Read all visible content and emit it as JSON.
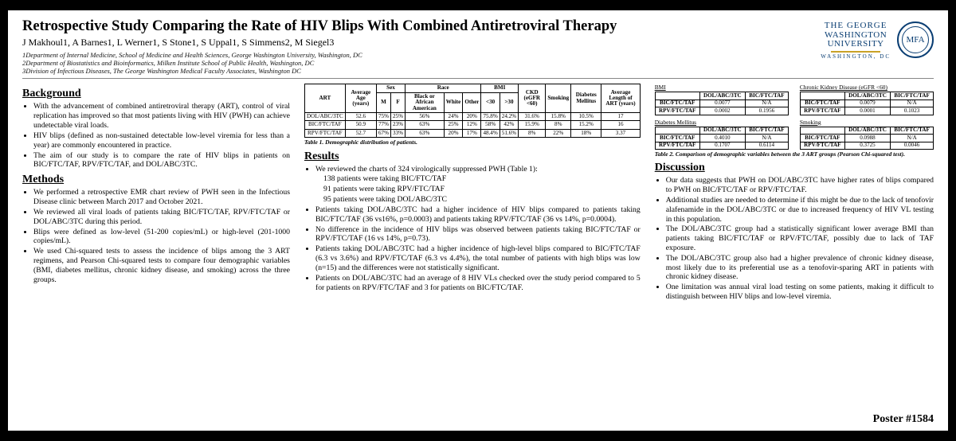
{
  "title": "Retrospective Study Comparing the Rate of HIV Blips With Combined Antiretroviral Therapy",
  "authors": "J Makhoul1, A Barnes1, L Werner1, S Stone1, S Uppal1, S Simmens2, M Siegel3",
  "affiliations": [
    "1Department of Internal Medicine, School of Medicine and Health Sciences, George Washington University, Washington, DC",
    "2Department of Biostatistics and Bioinformatics, Milken Institute School of Public Health, Washington, DC",
    "3Division of Infectious Diseases, The George Washington Medical Faculty Associates, Washington DC"
  ],
  "logo": {
    "l1": "THE GEORGE",
    "l2": "WASHINGTON",
    "l3": "UNIVERSITY",
    "l4": "WASHINGTON, DC",
    "mfa": "MFA"
  },
  "sections": {
    "background_h": "Background",
    "background": [
      "With the advancement of combined antiretroviral therapy (ART), control of viral replication has improved so that most patients living with HIV (PWH) can achieve undetectable viral loads.",
      "HIV blips (defined as non-sustained detectable low-level viremia for less than a year) are commonly encountered in practice.",
      "The aim of our study is to compare the rate of HIV blips in patients on BIC/FTC/TAF, RPV/FTC/TAF, and DOL/ABC/3TC."
    ],
    "methods_h": "Methods",
    "methods": [
      "We performed a retrospective EMR chart review of PWH seen in the Infectious Disease clinic between March 2017 and October 2021.",
      "We reviewed all viral loads of patients taking BIC/FTC/TAF, RPV/FTC/TAF or DOL/ABC/3TC during this period.",
      "Blips were defined as low-level (51-200 copies/mL) or high-level (201-1000 copies/mL).",
      "We used Chi-squared tests to assess the incidence of blips among the 3 ART regimens, and Pearson Chi-squared tests to compare four demographic variables (BMI, diabetes mellitus, chronic kidney disease, and smoking) across the three groups."
    ],
    "results_h": "Results",
    "results": [
      "We reviewed the charts of 324 virologically suppressed PWH (Table 1):",
      "138 patients were taking BIC/FTC/TAF",
      "91 patients were taking RPV/FTC/TAF",
      "95 patients were taking DOL/ABC/3TC",
      "Patients taking DOL/ABC/3TC had a higher incidence of HIV blips compared to patients taking BIC/FTC/TAF (36 vs16%, p=0.0003) and patients taking RPV/FTC/TAF (36 vs 14%, p=0.0004).",
      "No difference in the incidence of HIV blips was observed between patients taking BIC/FTC/TAF or RPV/FTC/TAF (16 vs 14%, p=0.73).",
      "Patients taking DOL/ABC/3TC had a higher incidence of high-level blips compared to BIC/FTC/TAF (6.3 vs 3.6%) and RPV/FTC/TAF (6.3 vs 4.4%), the total number of patients with high blips was low (n=15) and the differences were not statistically significant.",
      "Patients on DOL/ABC/3TC had an average of 8 HIV VLs checked over the study period compared to 5 for patients on RPV/FTC/TAF and 3 for patients on BIC/FTC/TAF."
    ],
    "discussion_h": "Discussion",
    "discussion": [
      "Our data suggests that PWH on DOL/ABC/3TC have higher rates of blips compared to PWH on BIC/FTC/TAF or RPV/FTC/TAF.",
      "Additional studies are needed to determine if this might be due to the lack of tenofovir alafenamide in the DOL/ABC/3TC or due to increased frequency of HIV VL testing in this population.",
      "The DOL/ABC/3TC group had a statistically significant lower average BMI than patients taking BIC/FTC/TAF or RPV/FTC/TAF, possibly due to lack of TAF exposure.",
      "The DOL/ABC/3TC group also had a higher prevalence of chronic kidney disease, most likely due to its preferential use as a tenofovir-sparing ART in patients with chronic kidney disease.",
      "One limitation was annual viral load testing on some patients, making it difficult to distinguish between HIV blips and low-level viremia."
    ]
  },
  "table1": {
    "caption": "Table 1. Demographic distribution of patients.",
    "top_headers": [
      "ART",
      "Average Age (years)",
      "Sex",
      "Race",
      "BMI",
      "CKD (eGFR <60)",
      "Smoking",
      "Diabetes Mellitus",
      "Average Length of ART (years)"
    ],
    "sub_sex": [
      "M",
      "F"
    ],
    "sub_race": [
      "Black or African American",
      "White",
      "Other"
    ],
    "sub_bmi": [
      "<30",
      ">30"
    ],
    "rows": [
      {
        "art": "DOL/ABC/3TC",
        "age": "52.6",
        "m": "75%",
        "f": "25%",
        "r1": "56%",
        "r2": "24%",
        "r3": "20%",
        "b1": "75.8%",
        "b2": "24.2%",
        "ckd": "31.6%",
        "sm": "15.8%",
        "dm": "10.5%",
        "len": "17"
      },
      {
        "art": "BIC/FTC/TAF",
        "age": "50.9",
        "m": "77%",
        "f": "23%",
        "r1": "63%",
        "r2": "25%",
        "r3": "12%",
        "b1": "58%",
        "b2": "42%",
        "ckd": "15.9%",
        "sm": "8%",
        "dm": "15.2%",
        "len": "16"
      },
      {
        "art": "RPV/FTC/TAF",
        "age": "52.7",
        "m": "67%",
        "f": "33%",
        "r1": "63%",
        "r2": "20%",
        "r3": "17%",
        "b1": "48.4%",
        "b2": "51.6%",
        "ckd": "8%",
        "sm": "22%",
        "dm": "18%",
        "len": "3.37"
      }
    ]
  },
  "table2": {
    "caption": "Table 2. Comparison of demographic variables between the 3 ART groups (Pearson Chi-squared test).",
    "col_h": [
      "DOL/ABC/3TC",
      "BIC/FTC/TAF"
    ],
    "blocks": [
      {
        "title": "BMI",
        "rows": [
          {
            "k": "BIC/FTC/TAF",
            "a": "0.0077",
            "b": "N/A"
          },
          {
            "k": "RPV/FTC/TAF",
            "a": "0.0002",
            "b": "0.1956"
          }
        ]
      },
      {
        "title": "Chronic Kidney Disease (eGFR <60)",
        "rows": [
          {
            "k": "BIC/FTC/TAF",
            "a": "0.0079",
            "b": "N/A"
          },
          {
            "k": "RPV/FTC/TAF",
            "a": "0.0001",
            "b": "0.1023"
          }
        ]
      },
      {
        "title": "Diabetes Mellitus",
        "rows": [
          {
            "k": "BIC/FTC/TAF",
            "a": "0.4010",
            "b": "N/A"
          },
          {
            "k": "RPV/FTC/TAF",
            "a": "0.1707",
            "b": "0.6114"
          }
        ]
      },
      {
        "title": "Smoking",
        "rows": [
          {
            "k": "BIC/FTC/TAF",
            "a": "0.0988",
            "b": "N/A"
          },
          {
            "k": "RPV/FTC/TAF",
            "a": "0.3725",
            "b": "0.0046"
          }
        ]
      }
    ]
  },
  "poster_num": "Poster #1584"
}
